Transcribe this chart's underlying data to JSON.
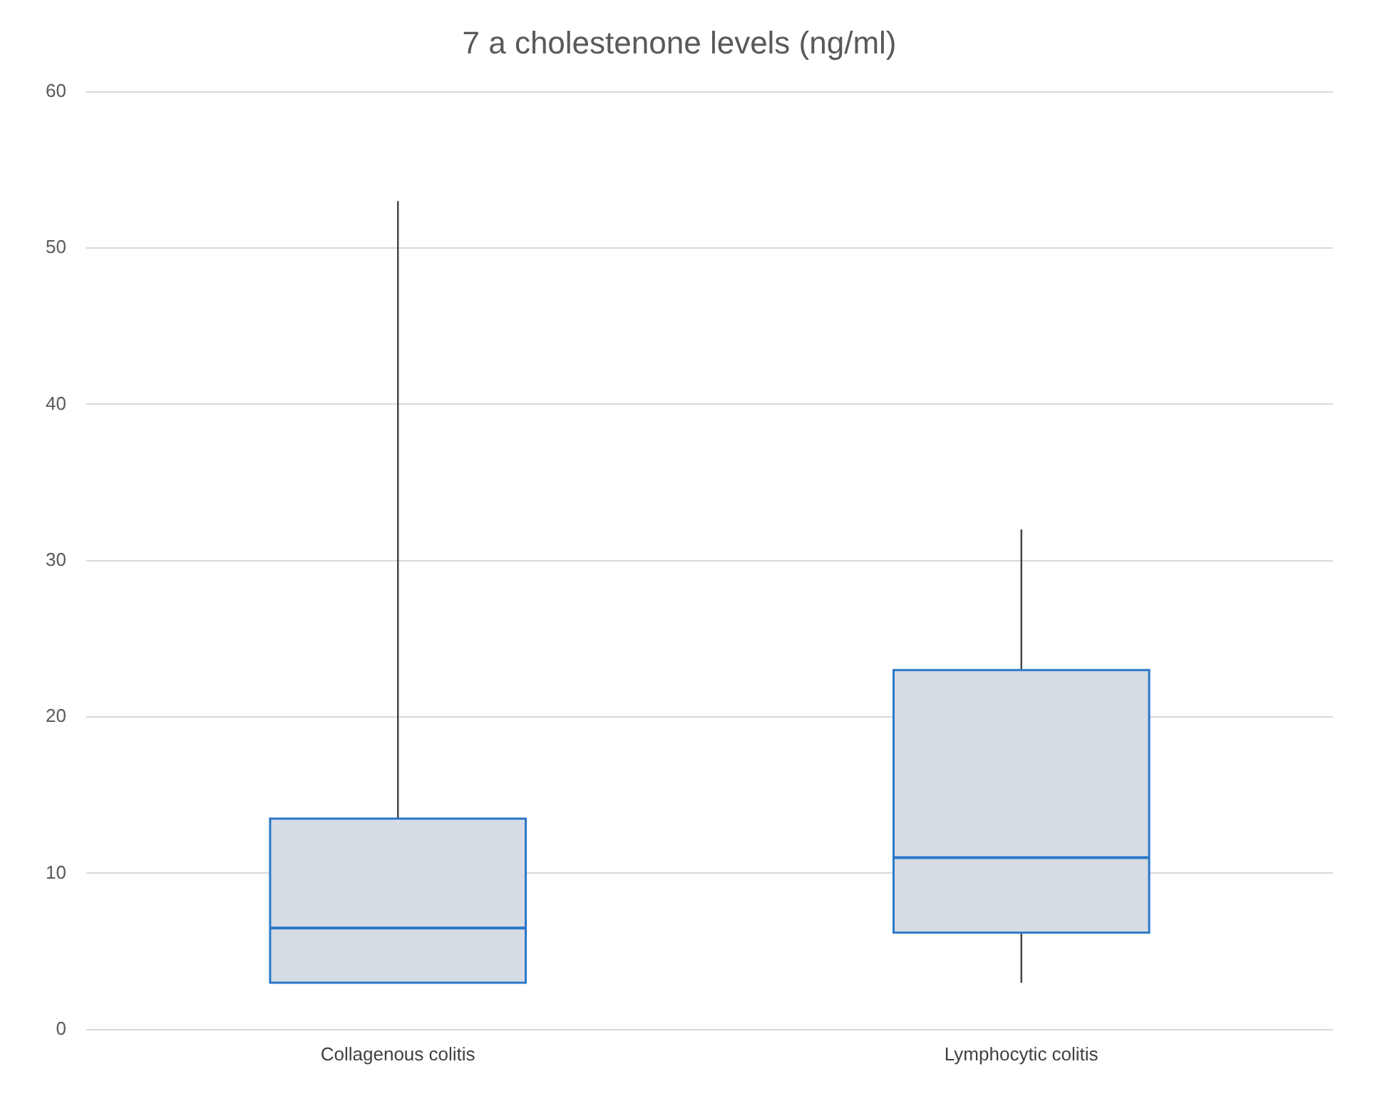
{
  "chart_data": {
    "type": "box",
    "title": "7 a cholestenone levels (ng/ml)",
    "categories": [
      "Collagenous colitis",
      "Lymphocytic colitis"
    ],
    "color": "#d6dce4",
    "boxes": [
      {
        "low": 3,
        "q1": 3,
        "median": 6.5,
        "q3": 13.5,
        "high": 53
      },
      {
        "low": 3,
        "q1": 6.2,
        "median": 11,
        "q3": 23,
        "high": 32
      }
    ],
    "ylim": [
      0,
      60
    ],
    "yticks": [
      0,
      10,
      20,
      30,
      40,
      50,
      60
    ],
    "grid": "y"
  }
}
